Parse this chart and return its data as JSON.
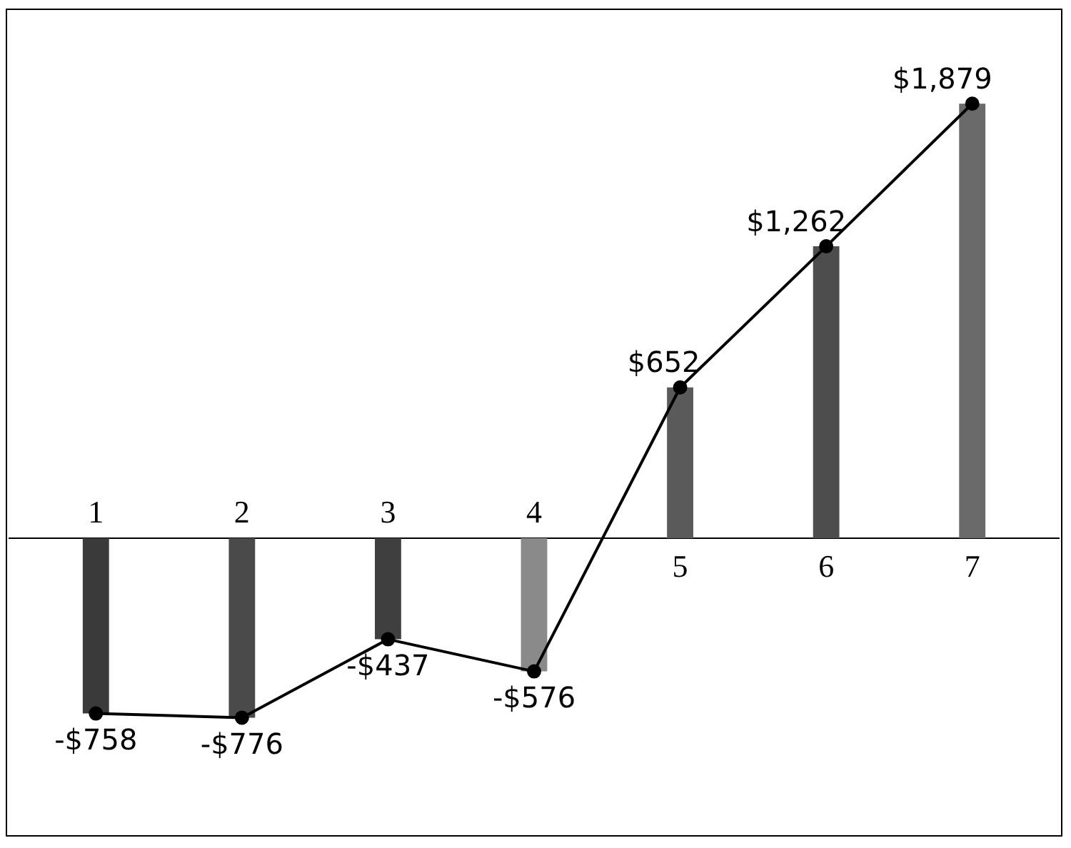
{
  "chart_data": {
    "type": "bar",
    "categories": [
      "1",
      "2",
      "3",
      "4",
      "5",
      "6",
      "7"
    ],
    "series": [
      {
        "colors": [
          "#3a3a3a",
          "#4a4a4a",
          "#3f3f3f",
          "#8a8a8a",
          "#5a5a5a",
          "#4d4d4d",
          "#6a6a6a"
        ],
        "values": [
          -758,
          -776,
          -437,
          -576,
          652,
          1262,
          1879
        ]
      },
      {
        "type": "line",
        "color": "#000000",
        "values": [
          -758,
          -776,
          -437,
          -576,
          652,
          1262,
          1879
        ],
        "value_labels": [
          "-$758",
          "-$776",
          "-$437",
          "-$576",
          "$652",
          "$1,262",
          "$1,879"
        ]
      }
    ],
    "marker": "circle",
    "legend": false,
    "tick_labels": "x"
  }
}
